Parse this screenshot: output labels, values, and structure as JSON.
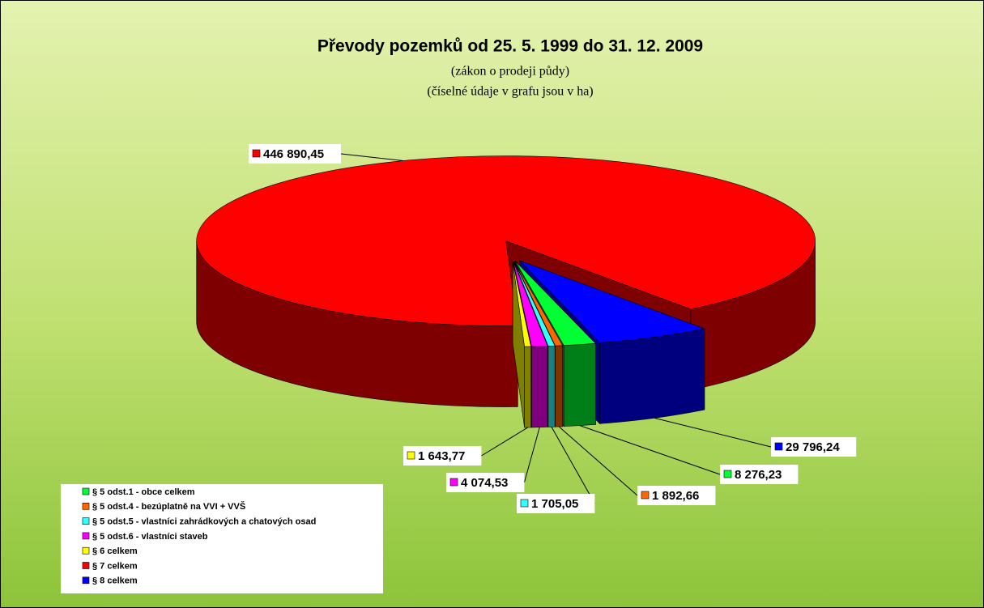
{
  "chart_data": {
    "type": "pie3d",
    "title": "Převody pozemků od 25. 5. 1999 do 31. 12. 2009",
    "subtitles": [
      "(zákon o prodeji půdy)",
      "(číselné údaje v grafu jsou v ha)"
    ],
    "categories": [
      "§ 5 odst.1 - obce  celkem",
      "§ 5 odst.4 - bezúplatně na VVI + VVŠ",
      "§ 5 odst.5 - vlastníci zahrádkových a chatových osad",
      "§ 5 odst.6 - vlastníci staveb",
      "§ 6 celkem",
      "§ 7 celkem",
      "§ 8 celkem"
    ],
    "values": [
      8276.23,
      1892.66,
      1705.05,
      4074.53,
      1643.77,
      446890.45,
      29796.24
    ],
    "value_labels": [
      "8 276,23",
      "1 892,66",
      "1 705,05",
      "4 074,53",
      "1 643,77",
      "446 890,45",
      "29 796,24"
    ],
    "colors": [
      "#00ff33",
      "#ff6600",
      "#33ffff",
      "#ff00ff",
      "#ffff00",
      "#ff0000",
      "#0000ff"
    ],
    "legend": "bottom-left"
  }
}
